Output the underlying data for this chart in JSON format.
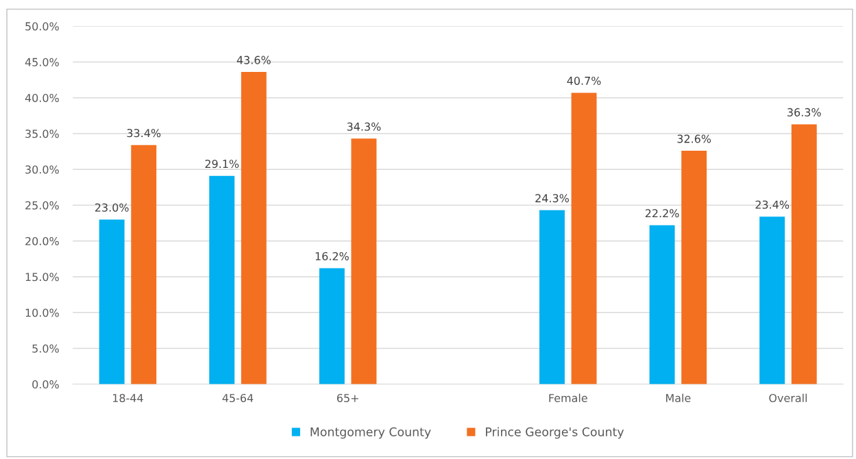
{
  "chart_data": {
    "type": "bar",
    "categories": [
      "18-44",
      "45-64",
      "65+",
      null,
      "Female",
      "Male",
      "Overall"
    ],
    "series": [
      {
        "name": "Montgomery County",
        "color": "#00b0f0",
        "values": [
          23.0,
          29.1,
          16.2,
          null,
          24.3,
          22.2,
          23.4
        ],
        "value_labels": [
          "23.0%",
          "29.1%",
          "16.2%",
          null,
          "24.3%",
          "22.2%",
          "23.4%"
        ]
      },
      {
        "name": "Prince George's County",
        "color": "#f37021",
        "values": [
          33.4,
          43.6,
          34.3,
          null,
          40.7,
          32.6,
          36.3
        ],
        "value_labels": [
          "33.4%",
          "43.6%",
          "34.3%",
          null,
          "40.7%",
          "32.6%",
          "36.3%"
        ]
      }
    ],
    "ylim": [
      0,
      50
    ],
    "yticks": [
      {
        "value": 0,
        "label": "0.0%"
      },
      {
        "value": 5,
        "label": "5.0%"
      },
      {
        "value": 10,
        "label": "10.0%"
      },
      {
        "value": 15,
        "label": "15.0%"
      },
      {
        "value": 20,
        "label": "20.0%"
      },
      {
        "value": 25,
        "label": "25.0%"
      },
      {
        "value": 30,
        "label": "30.0%"
      },
      {
        "value": 35,
        "label": "35.0%"
      },
      {
        "value": 40,
        "label": "40.0%"
      },
      {
        "value": 45,
        "label": "45.0%"
      },
      {
        "value": 50,
        "label": "50.0%"
      }
    ],
    "grid": "y",
    "legend": "bottom"
  }
}
